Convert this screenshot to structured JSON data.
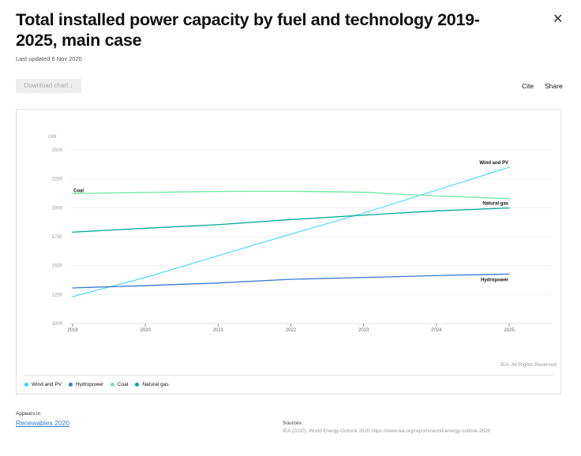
{
  "header": {
    "title": "Total installed power capacity by fuel and technology 2019-2025, main case",
    "updated": "Last updated 6 Nov 2020",
    "download": "Download chart ↓",
    "cite": "Cite",
    "share": "Share",
    "close": "✕"
  },
  "chart_data": {
    "type": "line",
    "ylabel": "GW",
    "ylim": [
      1000,
      2500
    ],
    "yticks": [
      "1000",
      "1250",
      "1500",
      "1750",
      "2000",
      "2250",
      "2500"
    ],
    "categories": [
      "2019",
      "2020",
      "2021",
      "2022",
      "2023",
      "2024",
      "2025"
    ],
    "grid": true,
    "legend": "bottom-left",
    "series": [
      {
        "name": "Wind and PV",
        "color": "#33d1ff",
        "values": [
          1232,
          1397,
          1586,
          1772,
          1954,
          2152,
          2350
        ]
      },
      {
        "name": "Hydropower",
        "color": "#3a78d0",
        "values": [
          1307,
          1327,
          1350,
          1382,
          1397,
          1414,
          1427
        ]
      },
      {
        "name": "Coal",
        "color": "#6fe8a0",
        "values": [
          2123,
          2132,
          2141,
          2143,
          2134,
          2102,
          2079
        ]
      },
      {
        "name": "Natural gas",
        "color": "#00a99d",
        "values": [
          1789,
          1823,
          1854,
          1898,
          1936,
          1973,
          1998
        ]
      }
    ],
    "rights": "IEA. All Rights Reserved"
  },
  "footer": {
    "appears_label": "Appears in",
    "appears_link": "Renewables 2020",
    "sources_label": "Sources",
    "sources_text": "IEA (2020), World Energy Outlook 2020 https://www.iea.org/reports/world-energy-outlook-2020"
  }
}
